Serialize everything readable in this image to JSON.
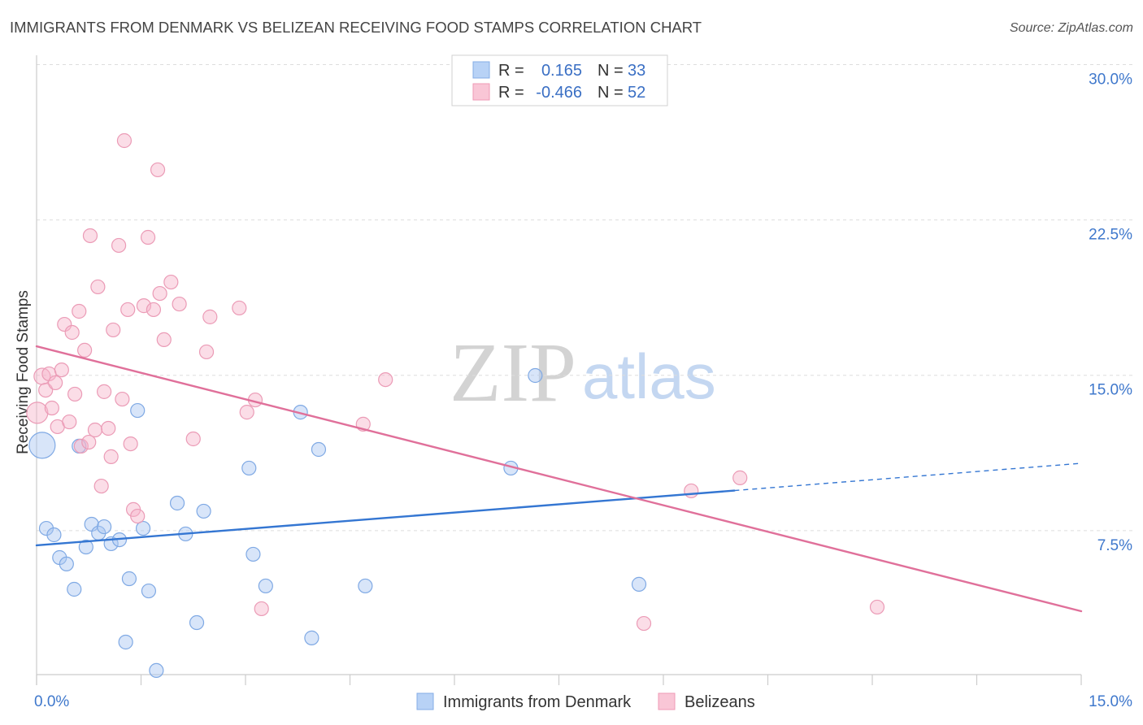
{
  "source": "Source: ZipAtlas.com",
  "watermark": {
    "zip": "ZIP",
    "atlas": "atlas"
  },
  "colors": {
    "denmark_fill": "#a8c6f1",
    "denmark_stroke": "#7fa9e4",
    "denmark_line": "#3476d2",
    "denmark_swatch": "#b8d2f6",
    "denmark_swatch_border": "#84ace6",
    "belizean_fill": "#f6b4c9",
    "belizean_stroke": "#eb9bb6",
    "belizean_line": "#e0709a",
    "belizean_swatch": "#f9c6d6",
    "belizean_swatch_border": "#ef9ab6"
  },
  "legend": {
    "r_label": "R =",
    "n_label": "N ="
  },
  "chart_data": {
    "type": "scatter",
    "title": "IMMIGRANTS FROM DENMARK VS BELIZEAN RECEIVING FOOD STAMPS CORRELATION CHART",
    "ylabel": "Receiving Food Stamps",
    "xlim": [
      0,
      15
    ],
    "ylim": [
      0.55,
      30.45
    ],
    "x_tick_step": 1.5,
    "x_tick_labels": [
      {
        "value": 0,
        "label": "0.0%"
      },
      {
        "value": 15,
        "label": "15.0%"
      }
    ],
    "y_ticks": [
      {
        "value": 7.5,
        "label": "7.5%"
      },
      {
        "value": 15,
        "label": "15.0%"
      },
      {
        "value": 22.5,
        "label": "22.5%"
      },
      {
        "value": 30,
        "label": "30.0%"
      }
    ],
    "grid": true,
    "series": [
      {
        "name": "Immigrants from Denmark",
        "r": "0.165",
        "n": "33",
        "points": [
          [
            0.08,
            11.62
          ],
          [
            0.61,
            11.58
          ],
          [
            0.14,
            7.61
          ],
          [
            0.25,
            7.3
          ],
          [
            0.33,
            6.2
          ],
          [
            0.43,
            5.89
          ],
          [
            0.54,
            4.67
          ],
          [
            0.71,
            6.71
          ],
          [
            0.79,
            7.81
          ],
          [
            0.89,
            7.38
          ],
          [
            0.97,
            7.69
          ],
          [
            1.07,
            6.87
          ],
          [
            1.19,
            7.06
          ],
          [
            1.33,
            5.18
          ],
          [
            1.28,
            2.12
          ],
          [
            1.45,
            13.3
          ],
          [
            1.53,
            7.61
          ],
          [
            1.61,
            4.59
          ],
          [
            1.72,
            0.75
          ],
          [
            2.02,
            8.83
          ],
          [
            2.14,
            7.34
          ],
          [
            2.3,
            3.06
          ],
          [
            2.4,
            8.44
          ],
          [
            3.05,
            10.52
          ],
          [
            3.11,
            6.36
          ],
          [
            3.29,
            4.83
          ],
          [
            3.79,
            13.22
          ],
          [
            3.95,
            2.32
          ],
          [
            4.05,
            11.42
          ],
          [
            4.72,
            4.83
          ],
          [
            6.81,
            10.52
          ],
          [
            7.16,
            14.99
          ],
          [
            8.65,
            4.91
          ]
        ],
        "trend": {
          "x": [
            0,
            15
          ],
          "y": [
            6.79,
            10.75
          ],
          "solid_until_x": 10.02
        }
      },
      {
        "name": "Belizeans",
        "r": "-0.466",
        "n": "52",
        "points": [
          [
            0.01,
            13.19
          ],
          [
            0.08,
            14.95
          ],
          [
            0.13,
            14.28
          ],
          [
            0.18,
            15.07
          ],
          [
            0.22,
            13.42
          ],
          [
            0.27,
            14.64
          ],
          [
            0.3,
            12.52
          ],
          [
            0.36,
            15.26
          ],
          [
            0.4,
            17.46
          ],
          [
            0.47,
            12.75
          ],
          [
            0.51,
            17.07
          ],
          [
            0.55,
            14.09
          ],
          [
            0.61,
            18.09
          ],
          [
            0.64,
            11.58
          ],
          [
            0.69,
            16.21
          ],
          [
            0.75,
            11.77
          ],
          [
            0.77,
            21.74
          ],
          [
            0.84,
            12.36
          ],
          [
            0.88,
            19.27
          ],
          [
            0.93,
            9.65
          ],
          [
            0.97,
            14.21
          ],
          [
            1.03,
            12.44
          ],
          [
            1.07,
            11.07
          ],
          [
            1.1,
            17.19
          ],
          [
            1.18,
            21.27
          ],
          [
            1.23,
            13.85
          ],
          [
            1.26,
            26.33
          ],
          [
            1.31,
            18.17
          ],
          [
            1.35,
            11.69
          ],
          [
            1.39,
            8.52
          ],
          [
            1.45,
            8.2
          ],
          [
            1.54,
            18.36
          ],
          [
            1.6,
            21.66
          ],
          [
            1.68,
            18.17
          ],
          [
            1.74,
            24.92
          ],
          [
            1.77,
            18.95
          ],
          [
            1.83,
            16.72
          ],
          [
            1.93,
            19.5
          ],
          [
            2.05,
            18.44
          ],
          [
            2.25,
            11.93
          ],
          [
            2.44,
            16.13
          ],
          [
            2.49,
            17.82
          ],
          [
            2.91,
            18.25
          ],
          [
            3.02,
            13.22
          ],
          [
            3.14,
            13.81
          ],
          [
            3.23,
            3.73
          ],
          [
            4.69,
            12.64
          ],
          [
            5.01,
            14.79
          ],
          [
            8.72,
            3.02
          ],
          [
            9.4,
            9.42
          ],
          [
            10.1,
            10.05
          ],
          [
            12.07,
            3.81
          ]
        ],
        "trend": {
          "x": [
            0,
            15
          ],
          "y": [
            16.4,
            3.61
          ]
        }
      }
    ]
  }
}
